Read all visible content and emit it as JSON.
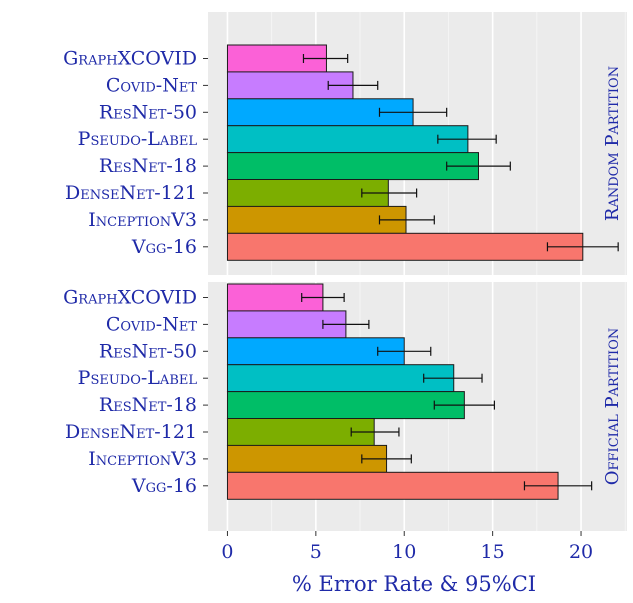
{
  "chart_data": {
    "type": "bar",
    "orientation": "horizontal",
    "categories": [
      "GraphXCOVID",
      "Covid-Net",
      "ResNet-50",
      "Pseudo-Label",
      "ResNet-18",
      "DenseNet-121",
      "InceptionV3",
      "Vgg-16"
    ],
    "colors": [
      "#fb61d7",
      "#c77cff",
      "#00a9ff",
      "#00bfc4",
      "#00be67",
      "#7cae00",
      "#cd9600",
      "#f8766d"
    ],
    "panels": [
      {
        "label": "Random Partition",
        "values": [
          5.6,
          7.1,
          10.5,
          13.6,
          14.2,
          9.1,
          10.1,
          20.1
        ],
        "ci_low": [
          4.3,
          5.7,
          8.6,
          11.9,
          12.4,
          7.6,
          8.6,
          18.1
        ],
        "ci_high": [
          6.8,
          8.5,
          12.4,
          15.2,
          16.0,
          10.7,
          11.7,
          22.1
        ]
      },
      {
        "label": "Official Partition",
        "values": [
          5.4,
          6.7,
          10.0,
          12.8,
          13.4,
          8.3,
          9.0,
          18.7
        ],
        "ci_low": [
          4.2,
          5.4,
          8.5,
          11.1,
          11.7,
          7.0,
          7.6,
          16.8
        ],
        "ci_high": [
          6.6,
          8.0,
          11.5,
          14.4,
          15.1,
          9.7,
          10.4,
          20.6
        ]
      }
    ],
    "x_ticks": [
      0,
      5,
      10,
      15,
      20
    ],
    "xlim": [
      -1.1,
      22.6
    ],
    "xlabel": "% Error Rate  & 95%CI",
    "grid": true
  }
}
